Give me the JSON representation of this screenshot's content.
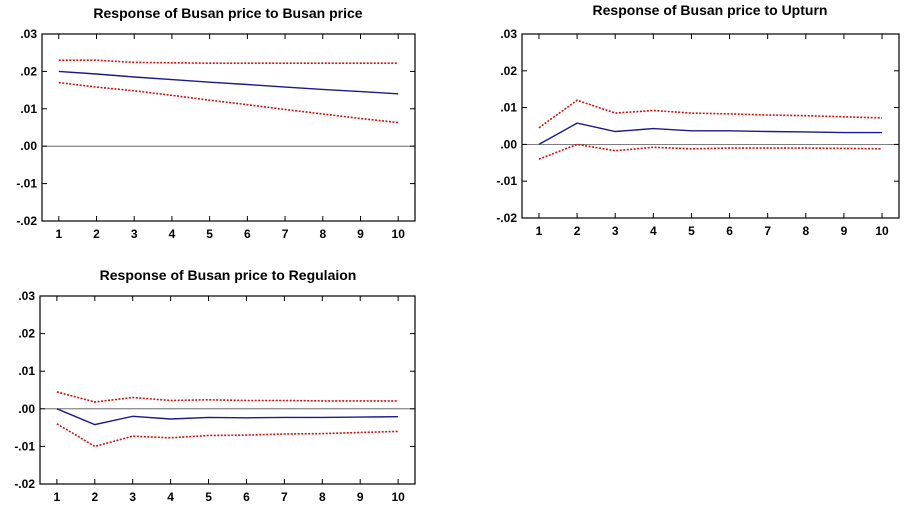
{
  "chart_data": [
    {
      "type": "line",
      "title": "Response of Busan price to Busan price",
      "xlabel": "",
      "ylabel": "",
      "x": [
        1,
        2,
        3,
        4,
        5,
        6,
        7,
        8,
        9,
        10
      ],
      "xticks": [
        "1",
        "2",
        "3",
        "4",
        "5",
        "6",
        "7",
        "8",
        "9",
        "10"
      ],
      "yticks": [
        ".03",
        ".02",
        ".01",
        ".00",
        "-.01",
        "-.02"
      ],
      "ylim": [
        -0.02,
        0.03
      ],
      "zero_line": true,
      "grid": false,
      "series": [
        {
          "role": "response",
          "color": "#1a1a8c",
          "style": "solid",
          "values": [
            0.02,
            0.0193,
            0.0185,
            0.0178,
            0.0171,
            0.0165,
            0.0158,
            0.0152,
            0.0146,
            0.014
          ]
        },
        {
          "role": "upper_band",
          "color": "#cc1111",
          "style": "dotted",
          "values": [
            0.023,
            0.023,
            0.0224,
            0.0223,
            0.0222,
            0.0222,
            0.0222,
            0.0222,
            0.0222,
            0.0222
          ]
        },
        {
          "role": "lower_band",
          "color": "#cc1111",
          "style": "dotted",
          "values": [
            0.017,
            0.0158,
            0.0148,
            0.0136,
            0.0123,
            0.0111,
            0.0098,
            0.0086,
            0.0074,
            0.0063
          ]
        }
      ]
    },
    {
      "type": "line",
      "title": "Response of Busan price to Upturn",
      "xlabel": "",
      "ylabel": "",
      "x": [
        1,
        2,
        3,
        4,
        5,
        6,
        7,
        8,
        9,
        10
      ],
      "xticks": [
        "1",
        "2",
        "3",
        "4",
        "5",
        "6",
        "7",
        "8",
        "9",
        "10"
      ],
      "yticks": [
        ".03",
        ".02",
        ".01",
        ".00",
        "-.01",
        "-.02"
      ],
      "ylim": [
        -0.02,
        0.03
      ],
      "zero_line": true,
      "grid": false,
      "series": [
        {
          "role": "response",
          "color": "#1a1a8c",
          "style": "solid",
          "values": [
            0.0,
            0.0058,
            0.0035,
            0.0043,
            0.0037,
            0.0037,
            0.0035,
            0.0034,
            0.0032,
            0.0032
          ]
        },
        {
          "role": "upper_band",
          "color": "#cc1111",
          "style": "dotted",
          "values": [
            0.0045,
            0.012,
            0.0085,
            0.0092,
            0.0085,
            0.0083,
            0.008,
            0.0078,
            0.0075,
            0.0072
          ]
        },
        {
          "role": "lower_band",
          "color": "#cc1111",
          "style": "dotted",
          "values": [
            -0.004,
            0.0,
            -0.0017,
            -0.0008,
            -0.0012,
            -0.001,
            -0.001,
            -0.001,
            -0.0011,
            -0.0012
          ]
        }
      ]
    },
    {
      "type": "line",
      "title": "Response of  Busan price to Regulaion",
      "xlabel": "",
      "ylabel": "",
      "x": [
        1,
        2,
        3,
        4,
        5,
        6,
        7,
        8,
        9,
        10
      ],
      "xticks": [
        "1",
        "2",
        "3",
        "4",
        "5",
        "6",
        "7",
        "8",
        "9",
        "10"
      ],
      "yticks": [
        ".03",
        ".02",
        ".01",
        ".00",
        "-.01",
        "-.02"
      ],
      "ylim": [
        -0.02,
        0.03
      ],
      "zero_line": true,
      "grid": false,
      "series": [
        {
          "role": "response",
          "color": "#1a1a8c",
          "style": "solid",
          "values": [
            0.0,
            -0.0042,
            -0.002,
            -0.0027,
            -0.0023,
            -0.0024,
            -0.0023,
            -0.0023,
            -0.0022,
            -0.0021
          ]
        },
        {
          "role": "upper_band",
          "color": "#cc1111",
          "style": "dotted",
          "values": [
            0.0045,
            0.0018,
            0.003,
            0.0022,
            0.0024,
            0.0022,
            0.0022,
            0.0021,
            0.0021,
            0.0021
          ]
        },
        {
          "role": "lower_band",
          "color": "#cc1111",
          "style": "dotted",
          "values": [
            -0.004,
            -0.01,
            -0.0073,
            -0.0077,
            -0.0071,
            -0.007,
            -0.0067,
            -0.0066,
            -0.0063,
            -0.006
          ]
        }
      ]
    }
  ]
}
